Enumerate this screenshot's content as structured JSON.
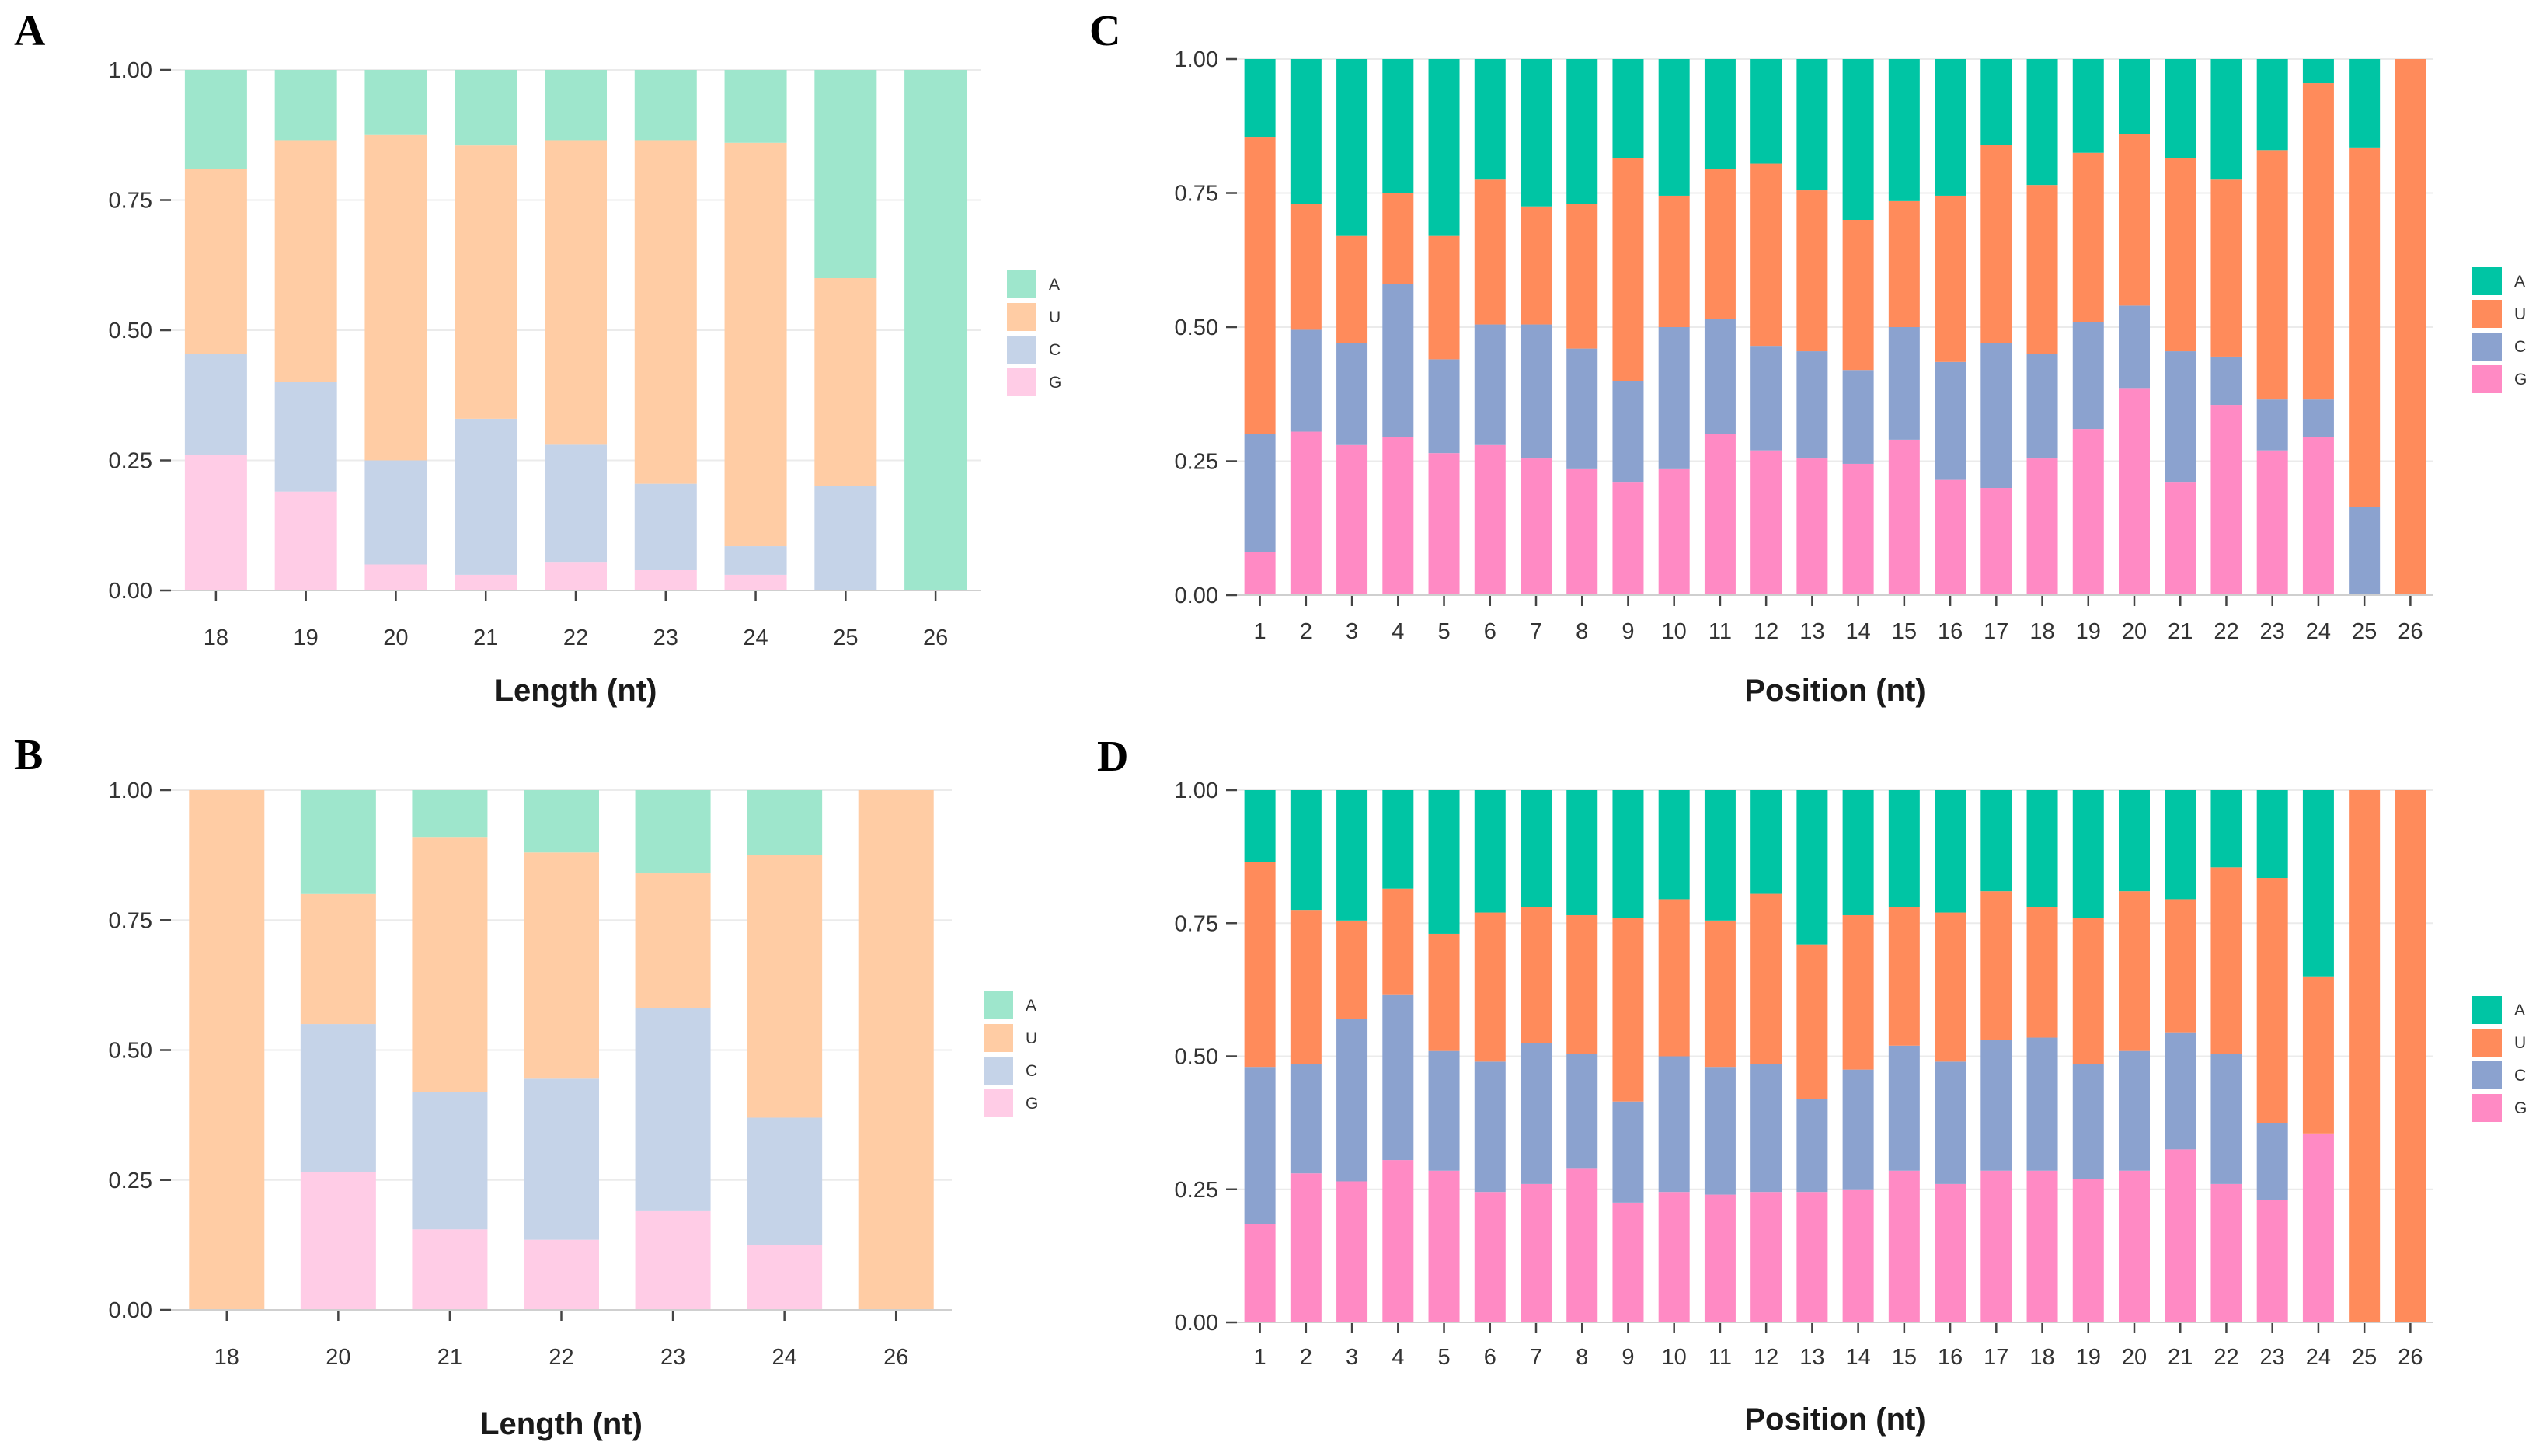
{
  "chart_data": [
    {
      "panel": "A",
      "type": "bar",
      "stacked": true,
      "xlabel": "Length (nt)",
      "ylabel": "",
      "ylim": [
        0,
        1
      ],
      "yticks": [
        "0.00",
        "0.25",
        "0.50",
        "0.75",
        "1.00"
      ],
      "categories": [
        "18",
        "19",
        "20",
        "21",
        "22",
        "23",
        "24",
        "25",
        "26"
      ],
      "series": [
        {
          "name": "G",
          "color": "#ffcce6",
          "values": [
            0.26,
            0.19,
            0.05,
            0.03,
            0.055,
            0.04,
            0.03,
            0,
            0
          ]
        },
        {
          "name": "C",
          "color": "#c5d3e8",
          "values": [
            0.195,
            0.21,
            0.2,
            0.3,
            0.225,
            0.165,
            0.055,
            0.2,
            0
          ]
        },
        {
          "name": "U",
          "color": "#ffcca4",
          "values": [
            0.355,
            0.465,
            0.625,
            0.525,
            0.585,
            0.66,
            0.775,
            0.4,
            0
          ]
        },
        {
          "name": "A",
          "color": "#9ee6cc",
          "values": [
            0.19,
            0.135,
            0.125,
            0.145,
            0.135,
            0.135,
            0.14,
            0.4,
            1.0
          ]
        }
      ],
      "legend": [
        "A",
        "U",
        "C",
        "G"
      ],
      "legend_position": "right"
    },
    {
      "panel": "B",
      "type": "bar",
      "stacked": true,
      "xlabel": "Length (nt)",
      "ylabel": "",
      "ylim": [
        0,
        1
      ],
      "yticks": [
        "0.00",
        "0.25",
        "0.50",
        "0.75",
        "1.00"
      ],
      "categories": [
        "18",
        "20",
        "21",
        "22",
        "23",
        "24",
        "26"
      ],
      "series": [
        {
          "name": "G",
          "color": "#ffcce6",
          "values": [
            0,
            0.265,
            0.155,
            0.135,
            0.19,
            0.125,
            0
          ]
        },
        {
          "name": "C",
          "color": "#c5d3e8",
          "values": [
            0,
            0.285,
            0.265,
            0.31,
            0.39,
            0.245,
            0
          ]
        },
        {
          "name": "U",
          "color": "#ffcca4",
          "values": [
            1.0,
            0.25,
            0.49,
            0.435,
            0.26,
            0.505,
            1.0
          ]
        },
        {
          "name": "A",
          "color": "#9ee6cc",
          "values": [
            0,
            0.2,
            0.09,
            0.12,
            0.16,
            0.125,
            0
          ]
        }
      ],
      "legend": [
        "A",
        "U",
        "C",
        "G"
      ],
      "legend_position": "right"
    },
    {
      "panel": "C",
      "type": "bar",
      "stacked": true,
      "xlabel": "Position (nt)",
      "ylabel": "",
      "ylim": [
        0,
        1
      ],
      "yticks": [
        "0.00",
        "0.25",
        "0.50",
        "0.75",
        "1.00"
      ],
      "categories": [
        "1",
        "2",
        "3",
        "4",
        "5",
        "6",
        "7",
        "8",
        "9",
        "10",
        "11",
        "12",
        "13",
        "14",
        "15",
        "16",
        "17",
        "18",
        "19",
        "20",
        "21",
        "22",
        "23",
        "24",
        "25",
        "26"
      ],
      "series": [
        {
          "name": "G",
          "color": "#ff8ac4",
          "values": [
            0.08,
            0.305,
            0.28,
            0.295,
            0.265,
            0.28,
            0.255,
            0.235,
            0.21,
            0.235,
            0.3,
            0.27,
            0.255,
            0.245,
            0.29,
            0.215,
            0.2,
            0.255,
            0.31,
            0.385,
            0.21,
            0.355,
            0.27,
            0.295,
            0,
            0
          ]
        },
        {
          "name": "C",
          "color": "#8ba2cf",
          "values": [
            0.22,
            0.19,
            0.19,
            0.285,
            0.175,
            0.225,
            0.25,
            0.225,
            0.19,
            0.265,
            0.215,
            0.195,
            0.2,
            0.175,
            0.21,
            0.22,
            0.27,
            0.195,
            0.2,
            0.155,
            0.245,
            0.09,
            0.095,
            0.07,
            0.165,
            0
          ]
        },
        {
          "name": "U",
          "color": "#ff8b5b",
          "values": [
            0.555,
            0.235,
            0.2,
            0.17,
            0.23,
            0.27,
            0.22,
            0.27,
            0.415,
            0.245,
            0.28,
            0.34,
            0.3,
            0.28,
            0.235,
            0.31,
            0.37,
            0.315,
            0.315,
            0.32,
            0.36,
            0.33,
            0.465,
            0.59,
            0.67,
            1.0
          ]
        },
        {
          "name": "A",
          "color": "#00c5a4",
          "values": [
            0.145,
            0.27,
            0.33,
            0.25,
            0.33,
            0.225,
            0.275,
            0.27,
            0.185,
            0.255,
            0.205,
            0.195,
            0.245,
            0.3,
            0.265,
            0.255,
            0.16,
            0.235,
            0.175,
            0.14,
            0.185,
            0.225,
            0.17,
            0.045,
            0.165,
            0
          ]
        }
      ],
      "legend": [
        "A",
        "U",
        "C",
        "G"
      ],
      "legend_position": "right"
    },
    {
      "panel": "D",
      "type": "bar",
      "stacked": true,
      "xlabel": "Position (nt)",
      "ylabel": "",
      "ylim": [
        0,
        1
      ],
      "yticks": [
        "0.00",
        "0.25",
        "0.50",
        "0.75",
        "1.00"
      ],
      "categories": [
        "1",
        "2",
        "3",
        "4",
        "5",
        "6",
        "7",
        "8",
        "9",
        "10",
        "11",
        "12",
        "13",
        "14",
        "15",
        "16",
        "17",
        "18",
        "19",
        "20",
        "21",
        "22",
        "23",
        "24",
        "25",
        "26"
      ],
      "series": [
        {
          "name": "G",
          "color": "#ff8ac4",
          "values": [
            0.185,
            0.28,
            0.265,
            0.305,
            0.285,
            0.245,
            0.26,
            0.29,
            0.225,
            0.245,
            0.24,
            0.245,
            0.245,
            0.25,
            0.285,
            0.26,
            0.285,
            0.285,
            0.27,
            0.285,
            0.325,
            0.26,
            0.23,
            0.355,
            0,
            0
          ]
        },
        {
          "name": "C",
          "color": "#8ba2cf",
          "values": [
            0.295,
            0.205,
            0.305,
            0.31,
            0.225,
            0.245,
            0.265,
            0.215,
            0.19,
            0.255,
            0.24,
            0.24,
            0.175,
            0.225,
            0.235,
            0.23,
            0.245,
            0.25,
            0.215,
            0.225,
            0.22,
            0.245,
            0.145,
            0,
            0,
            0
          ]
        },
        {
          "name": "U",
          "color": "#ff8b5b",
          "values": [
            0.385,
            0.29,
            0.185,
            0.2,
            0.22,
            0.28,
            0.255,
            0.26,
            0.345,
            0.295,
            0.275,
            0.32,
            0.29,
            0.29,
            0.26,
            0.28,
            0.28,
            0.245,
            0.275,
            0.3,
            0.25,
            0.35,
            0.46,
            0.295,
            1.0,
            1.0
          ]
        },
        {
          "name": "A",
          "color": "#00c5a4",
          "values": [
            0.135,
            0.225,
            0.245,
            0.185,
            0.27,
            0.23,
            0.22,
            0.235,
            0.24,
            0.205,
            0.245,
            0.195,
            0.29,
            0.235,
            0.22,
            0.23,
            0.19,
            0.22,
            0.24,
            0.19,
            0.205,
            0.145,
            0.165,
            0.35,
            0,
            0
          ]
        }
      ],
      "legend": [
        "A",
        "U",
        "C",
        "G"
      ],
      "legend_position": "right"
    }
  ]
}
